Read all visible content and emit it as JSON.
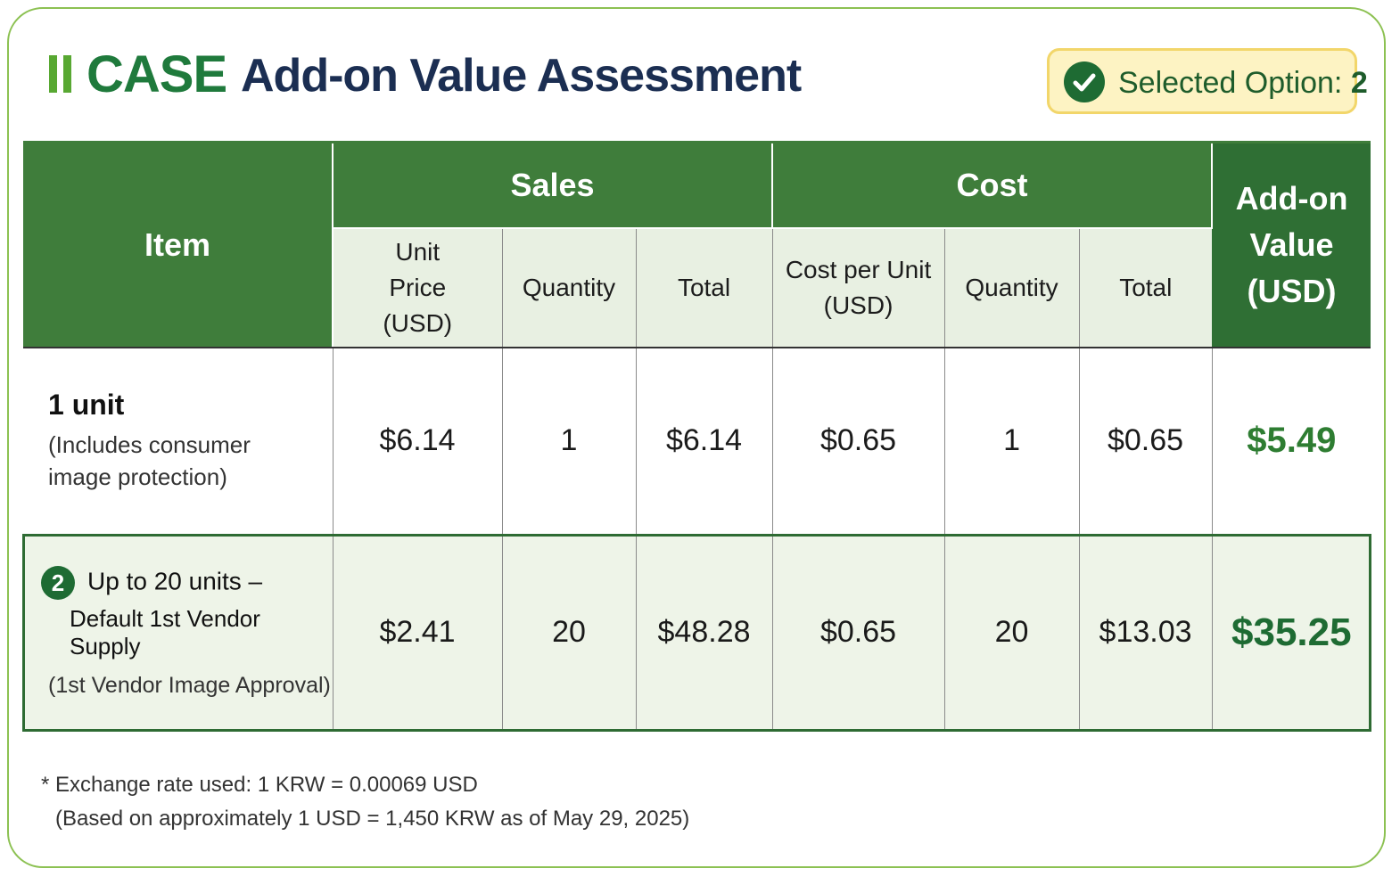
{
  "header": {
    "brand": "CASE",
    "title": "Add-on Value Assessment",
    "selected_label": "Selected Option:",
    "selected_value": "2",
    "check_icon": "check-circle-icon"
  },
  "table": {
    "col_item": "Item",
    "group_sales": "Sales",
    "group_cost": "Cost",
    "col_addon": "Add-on Value (USD)",
    "sales_unit_price": "Unit Price (USD)",
    "sales_quantity": "Quantity",
    "sales_total": "Total",
    "cost_per_unit": "Cost per Unit (USD)",
    "cost_quantity": "Quantity",
    "cost_total": "Total",
    "rows": [
      {
        "title": "1 unit",
        "subtitle": "(Includes consumer image protection)",
        "unit_price": "$6.14",
        "quantity": "1",
        "sales_total": "$6.14",
        "cost_per_unit": "$0.65",
        "cost_quantity": "1",
        "cost_total": "$0.65",
        "addon_value": "$5.49"
      },
      {
        "number": "2",
        "title_line1": "Up to 20 units –",
        "title_line2": "Default 1st Vendor Supply",
        "subtitle": "(1st Vendor Image Approval)",
        "unit_price": "$2.41",
        "quantity": "20",
        "sales_total": "$48.28",
        "cost_per_unit": "$0.65",
        "cost_quantity": "20",
        "cost_total": "$13.03",
        "addon_value": "$35.25"
      }
    ]
  },
  "footnote": {
    "line1": "* Exchange rate used: 1 KRW = 0.00069 USD",
    "line2": "(Based on approximately 1 USD  = 1,450 KRW as of May 29, 2025)"
  },
  "colors": {
    "header_green": "#3f7d3b",
    "accent_green": "#1e6b33",
    "badge_bg": "#fdf3c3",
    "card_border": "#8cc152"
  }
}
